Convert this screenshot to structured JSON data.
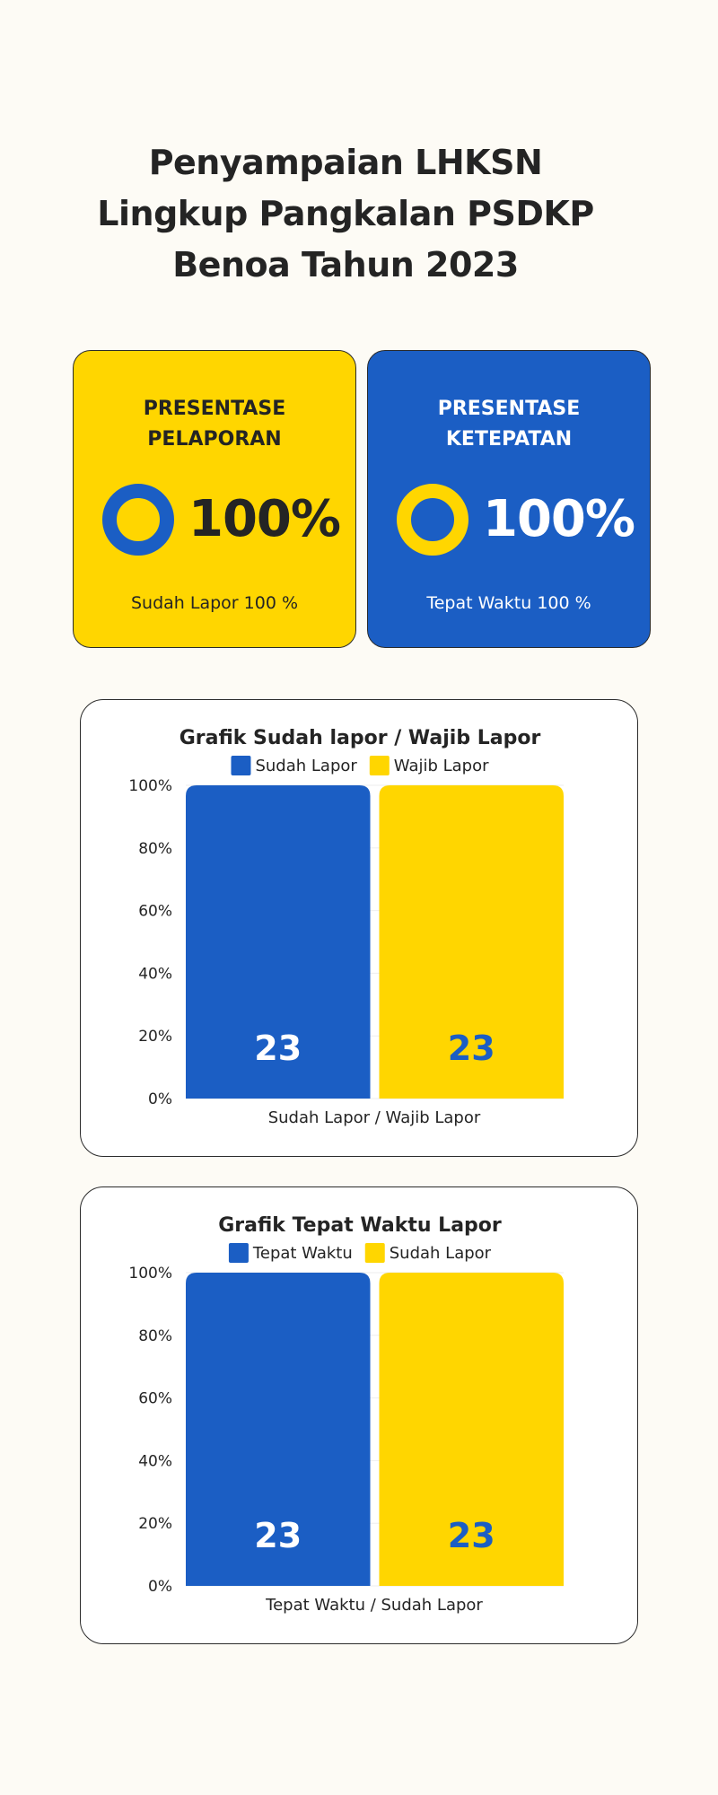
{
  "title": [
    "Penyampaian LHKSN",
    "Lingkup Pangkalan PSDKP",
    "Benoa Tahun 2023"
  ],
  "cards": [
    {
      "title_lines": [
        "PRESENTASE",
        "PELAPORAN"
      ],
      "value": "100%",
      "subtitle": "Sudah Lapor 100 %"
    },
    {
      "title_lines": [
        "PRESENTASE",
        "KETEPATAN"
      ],
      "value": "100%",
      "subtitle": "Tepat Waktu 100 %"
    }
  ],
  "colors": {
    "blue": "#1b5ec4",
    "yellow": "#ffd600",
    "label_blue": "#1b5ec4",
    "label_white": "#ffffff"
  },
  "chart_data": [
    {
      "type": "bar",
      "title": "Grafik Sudah lapor / Wajib Lapor",
      "xlabel": "Sudah Lapor / Wajib Lapor",
      "ylabel": "",
      "ylim": [
        0,
        100
      ],
      "yticks": [
        "0%",
        "20%",
        "40%",
        "60%",
        "80%",
        "100%"
      ],
      "legend": "top",
      "series": [
        {
          "name": "Sudah Lapor",
          "value": 100,
          "label": "23",
          "color": "#1b5ec4",
          "label_color": "#ffffff"
        },
        {
          "name": "Wajib Lapor",
          "value": 100,
          "label": "23",
          "color": "#ffd600",
          "label_color": "#1b5ec4"
        }
      ]
    },
    {
      "type": "bar",
      "title": "Grafik Tepat Waktu Lapor",
      "xlabel": "Tepat Waktu / Sudah Lapor",
      "ylabel": "",
      "ylim": [
        0,
        100
      ],
      "yticks": [
        "0%",
        "20%",
        "40%",
        "60%",
        "80%",
        "100%"
      ],
      "legend": "top",
      "series": [
        {
          "name": "Tepat Waktu",
          "value": 100,
          "label": "23",
          "color": "#1b5ec4",
          "label_color": "#ffffff"
        },
        {
          "name": "Sudah Lapor",
          "value": 100,
          "label": "23",
          "color": "#ffd600",
          "label_color": "#1b5ec4"
        }
      ]
    }
  ]
}
